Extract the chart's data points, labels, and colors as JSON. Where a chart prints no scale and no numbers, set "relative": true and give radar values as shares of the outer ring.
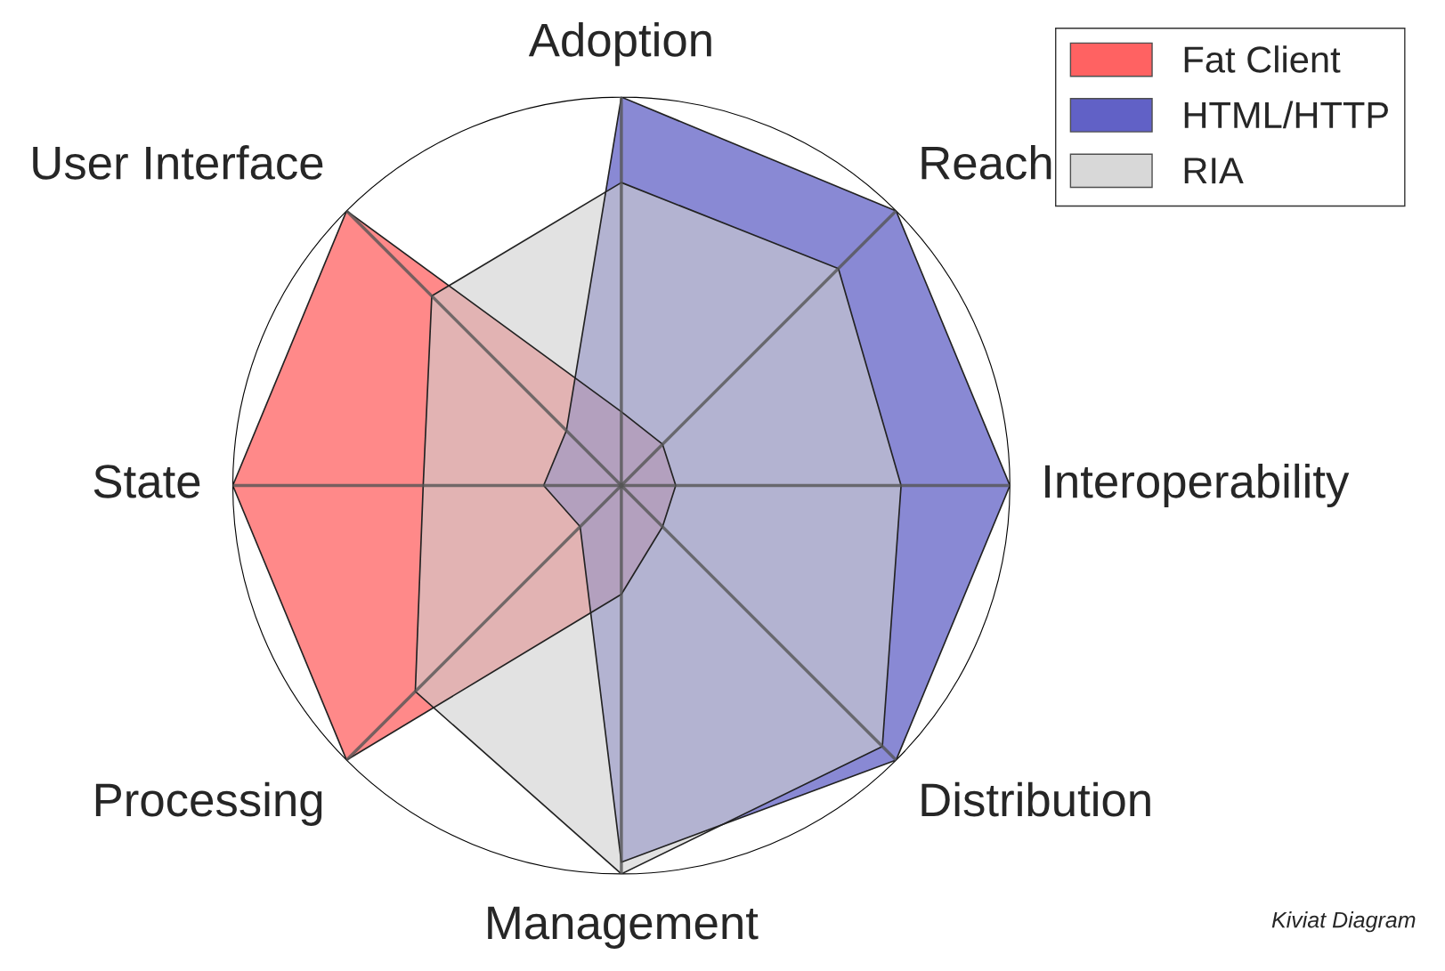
{
  "chart_data": {
    "type": "radar",
    "relative": true,
    "grid": "x",
    "legend": "top right",
    "marker": "none",
    "categories": [
      "Adoption",
      "Reach",
      "Interoperability",
      "Distribution",
      "Management",
      "Processing",
      "State",
      "User Interface"
    ],
    "series": [
      {
        "name": "Fat Client",
        "color": "#ff3b3b",
        "values": [
          0.19,
          0.15,
          0.14,
          0.15,
          0.28,
          1,
          1,
          1
        ]
      },
      {
        "name": "HTML/HTTP",
        "color": "#3a3ab8",
        "values": [
          1,
          1,
          1,
          1,
          0.97,
          0.15,
          0.2,
          0.2
        ]
      },
      {
        "name": "RIA",
        "color": "#cfcfcf",
        "values": [
          0.78,
          0.79,
          0.72,
          0.95,
          1,
          0.75,
          0.51,
          0.69
        ]
      }
    ],
    "annotations": [
      "Kiviat Diagram"
    ]
  }
}
